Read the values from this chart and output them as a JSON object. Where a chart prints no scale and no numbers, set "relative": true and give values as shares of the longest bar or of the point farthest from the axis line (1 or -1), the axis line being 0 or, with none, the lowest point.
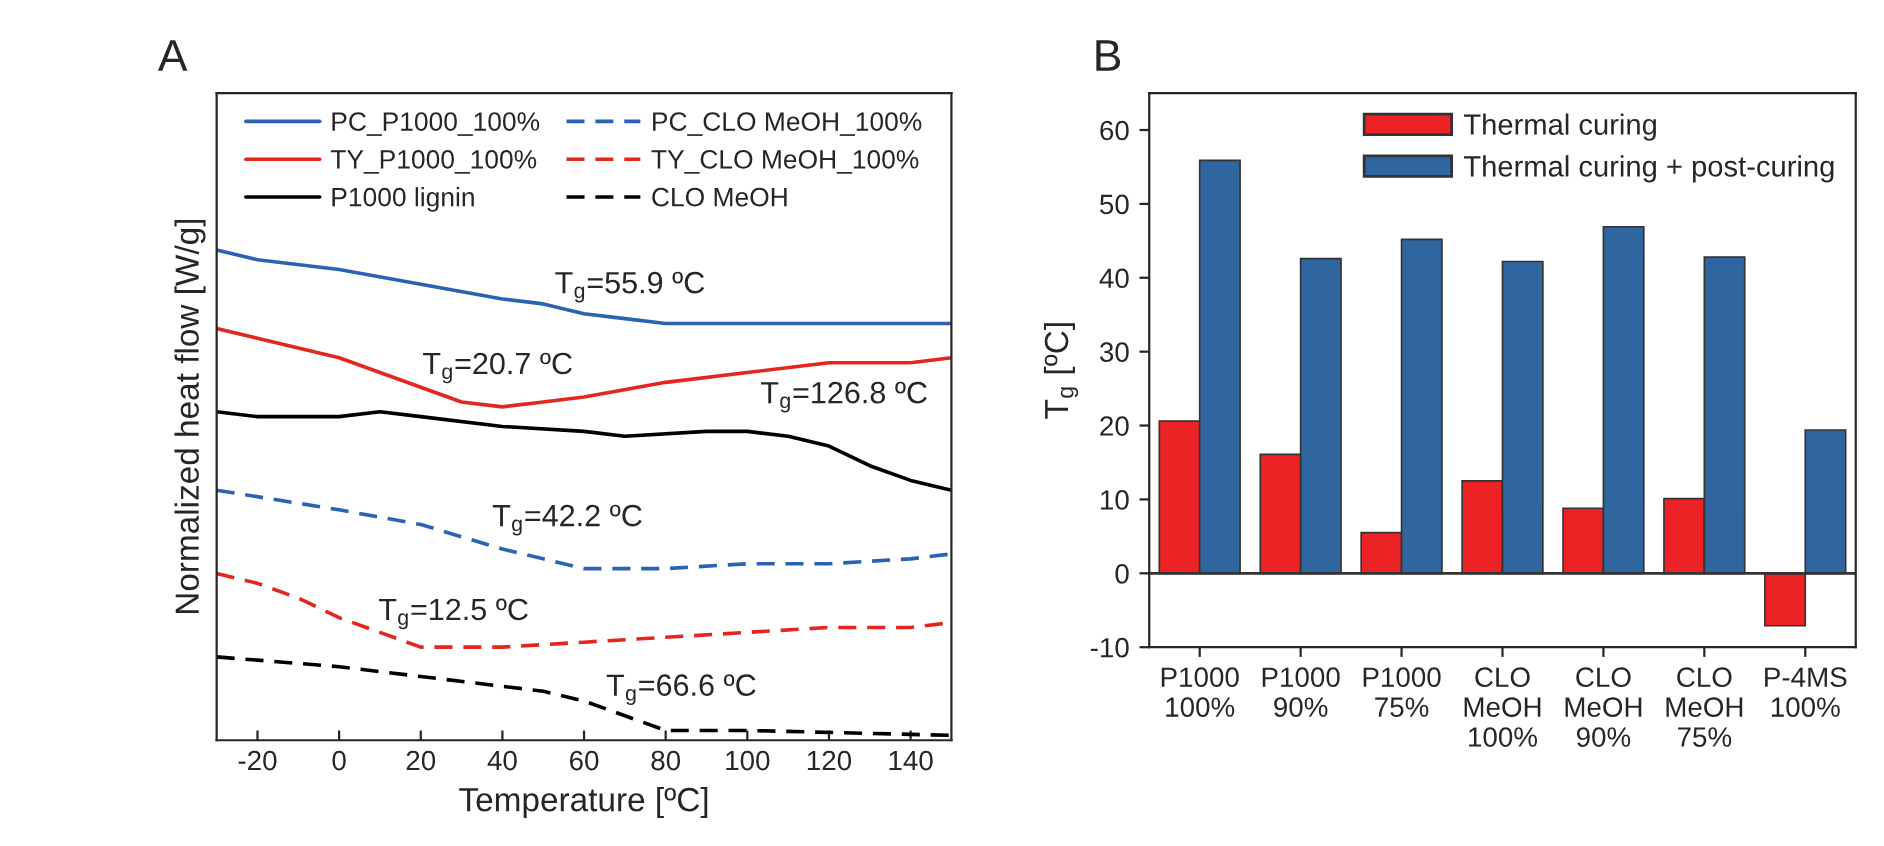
{
  "chart_data": [
    {
      "type": "line",
      "title": "A",
      "xlabel": "Temperature [ºC]",
      "ylabel": "Normalized heat flow [W/g]",
      "relative": true,
      "xlim": [
        -30,
        150
      ],
      "xticks": [
        -20,
        0,
        20,
        40,
        60,
        80,
        100,
        120,
        140
      ],
      "tick_labels": "x",
      "legend": "top",
      "series": [
        {
          "name": "PC_P1000_100%",
          "color": "#2a63b4",
          "line_style": "solid",
          "x": [
            -30,
            -20,
            0,
            20,
            40,
            50,
            60,
            70,
            80,
            100,
            120,
            140,
            150
          ],
          "values": [
            1.0,
            0.98,
            0.96,
            0.93,
            0.9,
            0.89,
            0.87,
            0.86,
            0.85,
            0.85,
            0.85,
            0.85,
            0.85
          ]
        },
        {
          "name": "TY_P1000_100%",
          "color": "#e4261f",
          "line_style": "solid",
          "x": [
            -30,
            -20,
            0,
            10,
            20,
            30,
            40,
            50,
            60,
            80,
            100,
            120,
            140,
            150
          ],
          "values": [
            0.84,
            0.82,
            0.78,
            0.75,
            0.72,
            0.69,
            0.68,
            0.69,
            0.7,
            0.73,
            0.75,
            0.77,
            0.77,
            0.78
          ]
        },
        {
          "name": "P1000 lignin",
          "color": "#000000",
          "line_style": "solid",
          "x": [
            -30,
            -20,
            0,
            10,
            20,
            40,
            60,
            70,
            90,
            100,
            110,
            120,
            130,
            140,
            150
          ],
          "values": [
            0.67,
            0.66,
            0.66,
            0.67,
            0.66,
            0.64,
            0.63,
            0.62,
            0.63,
            0.63,
            0.62,
            0.6,
            0.56,
            0.53,
            0.51
          ]
        },
        {
          "name": "PC_CLO MeOH_100%",
          "color": "#2a63b4",
          "line_style": "dashed",
          "x": [
            -30,
            0,
            20,
            40,
            50,
            60,
            70,
            80,
            100,
            120,
            140,
            150
          ],
          "values": [
            0.51,
            0.47,
            0.44,
            0.39,
            0.37,
            0.35,
            0.35,
            0.35,
            0.36,
            0.36,
            0.37,
            0.38
          ]
        },
        {
          "name": "TY_CLO MeOH_100%",
          "color": "#e4261f",
          "line_style": "dashed",
          "x": [
            -30,
            -20,
            -10,
            0,
            10,
            20,
            30,
            40,
            60,
            80,
            100,
            120,
            140,
            150
          ],
          "values": [
            0.34,
            0.32,
            0.29,
            0.25,
            0.22,
            0.19,
            0.19,
            0.19,
            0.2,
            0.21,
            0.22,
            0.23,
            0.23,
            0.24
          ]
        },
        {
          "name": "CLO MeOH",
          "color": "#000000",
          "line_style": "dashed",
          "x": [
            -30,
            0,
            20,
            40,
            50,
            60,
            70,
            80,
            90,
            100,
            150
          ],
          "values": [
            0.17,
            0.15,
            0.13,
            0.11,
            0.1,
            0.08,
            0.05,
            0.02,
            0.02,
            0.02,
            0.01
          ]
        }
      ],
      "annotations": [
        "T$_{g}$=55.9 ºC",
        "T$_{g}$=20.7 ºC",
        "T$_{g}$=126.8 ºC",
        "T$_{g}$=42.2 ºC",
        "T$_{g}$=12.5 ºC",
        "T$_{g}$=66.6 ºC"
      ]
    },
    {
      "type": "bar",
      "title": "B",
      "ylabel": "T$_{g}$ [ºC]",
      "ylim": [
        -10,
        65
      ],
      "yticks": [
        -10,
        0,
        10,
        20,
        30,
        40,
        50,
        60
      ],
      "legend": "top right",
      "categories": [
        "P1000\n100%",
        "P1000\n90%",
        "P1000\n75%",
        "CLO\nMeOH\n100%",
        "CLO\nMeOH\n90%",
        "CLO\nMeOH\n75%",
        "P-4MS\n100%"
      ],
      "series": [
        {
          "name": "Thermal curing",
          "color": "#ed2224",
          "values": [
            20.6,
            16.1,
            5.5,
            12.5,
            8.8,
            10.1,
            -7.1
          ]
        },
        {
          "name": "Thermal curing + post-curing",
          "color": "#2f66a0",
          "values": [
            55.9,
            42.6,
            45.2,
            42.2,
            46.9,
            42.8,
            19.4
          ]
        }
      ]
    }
  ]
}
